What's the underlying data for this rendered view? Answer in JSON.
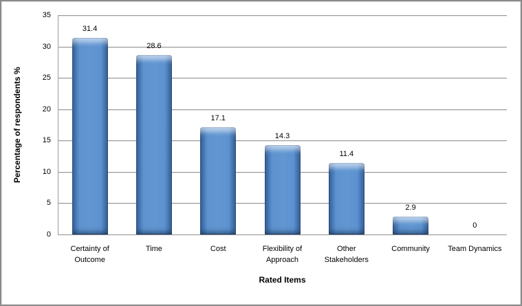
{
  "chart_data": {
    "type": "bar",
    "title": "",
    "xlabel": "Rated Items",
    "ylabel": "Percentage of respondents %",
    "categories": [
      "Certainty of\nOutcome",
      "Time",
      "Cost",
      "Flexibility of\nApproach",
      "Other\nStakeholders",
      "Community",
      "Team Dynamics"
    ],
    "values": [
      31.4,
      28.6,
      17.1,
      14.3,
      11.4,
      2.9,
      0
    ],
    "value_labels": [
      "31.4",
      "28.6",
      "17.1",
      "14.3",
      "11.4",
      "2.9",
      "0"
    ],
    "ylim": [
      0,
      35
    ],
    "yticks": [
      0,
      5,
      10,
      15,
      20,
      25,
      30,
      35
    ],
    "grid": true,
    "legend": "none",
    "colors": {
      "bar_face": "#6296d1",
      "bar_edge": "#24476f",
      "bar_highlight": "#a9cdf0",
      "gridline": "#9a9a9a",
      "axis_line": "#8f8f8f",
      "text": "#000000",
      "frame_border": "#8a8a8a",
      "background": "#ffffff"
    }
  }
}
